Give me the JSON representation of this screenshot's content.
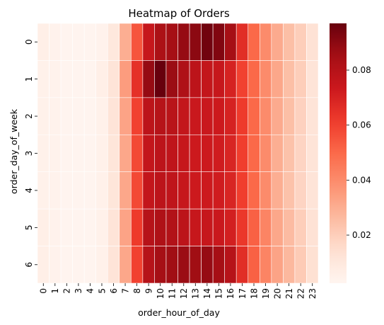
{
  "chart_data": {
    "type": "heatmap",
    "title": "Heatmap of Orders",
    "xlabel": "order_hour_of_day",
    "ylabel": "order_day_of_week",
    "x": [
      "0",
      "1",
      "2",
      "3",
      "4",
      "5",
      "6",
      "7",
      "8",
      "9",
      "10",
      "11",
      "12",
      "13",
      "14",
      "15",
      "16",
      "17",
      "18",
      "19",
      "20",
      "21",
      "22",
      "23"
    ],
    "y": [
      "0",
      "1",
      "2",
      "3",
      "4",
      "5",
      "6"
    ],
    "colormap": "Reds",
    "color_range": [
      0.0025,
      0.097
    ],
    "colorbar_ticks": [
      0.02,
      0.04,
      0.06,
      0.08
    ],
    "colorbar_tick_labels": [
      "0.02",
      "0.04",
      "0.06",
      "0.08"
    ],
    "cell_border_color": "#ffffff",
    "values": [
      [
        0.006,
        0.004,
        0.003,
        0.003,
        0.003,
        0.004,
        0.01,
        0.03,
        0.055,
        0.075,
        0.083,
        0.085,
        0.088,
        0.09,
        0.095,
        0.092,
        0.085,
        0.066,
        0.05,
        0.04,
        0.031,
        0.025,
        0.02,
        0.013
      ],
      [
        0.005,
        0.004,
        0.003,
        0.003,
        0.003,
        0.006,
        0.012,
        0.035,
        0.065,
        0.088,
        0.097,
        0.087,
        0.082,
        0.078,
        0.076,
        0.075,
        0.07,
        0.06,
        0.05,
        0.04,
        0.032,
        0.025,
        0.02,
        0.012
      ],
      [
        0.005,
        0.004,
        0.003,
        0.003,
        0.003,
        0.005,
        0.012,
        0.033,
        0.06,
        0.078,
        0.08,
        0.079,
        0.076,
        0.074,
        0.074,
        0.073,
        0.07,
        0.062,
        0.05,
        0.04,
        0.031,
        0.025,
        0.019,
        0.012
      ],
      [
        0.005,
        0.004,
        0.003,
        0.003,
        0.003,
        0.005,
        0.011,
        0.032,
        0.058,
        0.076,
        0.078,
        0.077,
        0.075,
        0.073,
        0.073,
        0.072,
        0.069,
        0.061,
        0.05,
        0.04,
        0.03,
        0.024,
        0.018,
        0.012
      ],
      [
        0.005,
        0.004,
        0.003,
        0.003,
        0.003,
        0.005,
        0.011,
        0.032,
        0.058,
        0.076,
        0.078,
        0.077,
        0.075,
        0.073,
        0.073,
        0.072,
        0.069,
        0.061,
        0.05,
        0.04,
        0.03,
        0.024,
        0.018,
        0.012
      ],
      [
        0.006,
        0.004,
        0.003,
        0.003,
        0.003,
        0.005,
        0.012,
        0.033,
        0.062,
        0.08,
        0.082,
        0.081,
        0.078,
        0.075,
        0.075,
        0.074,
        0.071,
        0.063,
        0.052,
        0.042,
        0.032,
        0.026,
        0.02,
        0.013
      ],
      [
        0.006,
        0.004,
        0.003,
        0.003,
        0.003,
        0.005,
        0.012,
        0.032,
        0.06,
        0.08,
        0.085,
        0.086,
        0.087,
        0.086,
        0.088,
        0.085,
        0.08,
        0.066,
        0.052,
        0.042,
        0.033,
        0.027,
        0.021,
        0.014
      ]
    ]
  }
}
